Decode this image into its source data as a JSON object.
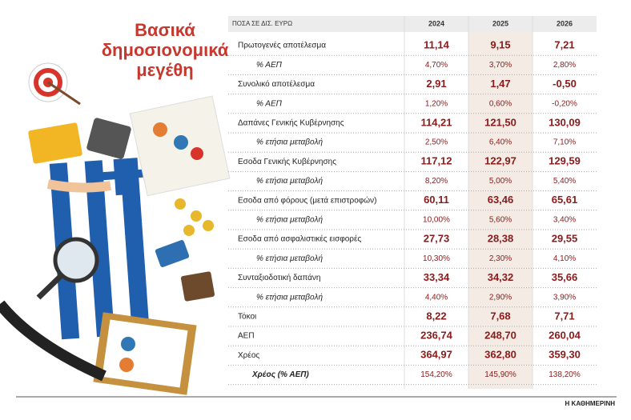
{
  "header": {
    "title": [
      "Βασικά",
      "δημοσιονομικά",
      "μεγέθη"
    ]
  },
  "table": {
    "columns": [
      "ΠΟΣΑ ΣΕ ΔΙΣ. ΕΥΡΩ",
      "2024",
      "2025",
      "2026"
    ],
    "rows": [
      [
        "Πρωτογενές αποτέλεσμα",
        "11,14",
        "9,15",
        "7,21"
      ],
      [
        "% ΑΕΠ",
        "4,70%",
        "3,70%",
        "2,80%"
      ],
      [
        "Συνολικό αποτέλεσμα",
        "2,91",
        "1,47",
        "-0,50"
      ],
      [
        "% ΑΕΠ",
        "1,20%",
        "0,60%",
        "-0,20%"
      ],
      [
        "Δαπάνες Γενικής Κυβέρνησης",
        "114,21",
        "121,50",
        "130,09"
      ],
      [
        "% ετήσια μεταβολή",
        "2,50%",
        "6,40%",
        "7,10%"
      ],
      [
        "Εσοδα Γενικής Κυβέρνησης",
        "117,12",
        "122,97",
        "129,59"
      ],
      [
        "% ετήσια μεταβολή",
        "8,20%",
        "5,00%",
        "5,40%"
      ],
      [
        "Εσοδα από φόρους (μετά επιστροφών)",
        "60,11",
        "63,46",
        "65,61"
      ],
      [
        "% ετήσια μεταβολή",
        "10,00%",
        "5,60%",
        "3,40%"
      ],
      [
        "Εσοδα από ασφαλιστικές εισφορές",
        "27,73",
        "28,38",
        "29,55"
      ],
      [
        "% ετήσια μεταβολή",
        "10,30%",
        "2,30%",
        "4,10%"
      ],
      [
        "Συνταξιοδοτική δαπάνη",
        "33,34",
        "34,32",
        "35,66"
      ],
      [
        "% ετήσια μεταβολή",
        "4,40%",
        "2,90%",
        "3,90%"
      ],
      [
        "Τόκοι",
        "8,22",
        "7,68",
        "7,71"
      ],
      [
        "ΑΕΠ",
        "236,74",
        "248,70",
        "260,04"
      ],
      [
        "Χρέος",
        "364,97",
        "362,80",
        "359,30"
      ],
      [
        "Χρέος (% ΑΕΠ)",
        "154,20%",
        "145,90%",
        "138,20%"
      ]
    ]
  },
  "source": "Η ΚΑΘΗΜΕΡΙΝΗ"
}
